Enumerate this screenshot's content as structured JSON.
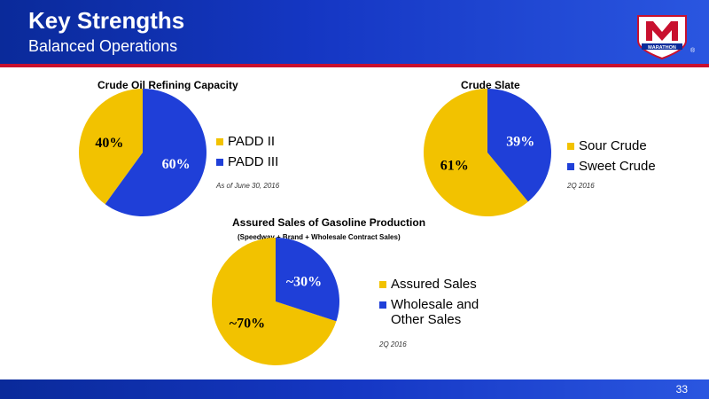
{
  "header": {
    "title": "Key Strengths",
    "subtitle": "Balanced Operations",
    "logo_text": "MARATHON"
  },
  "footer": {
    "page_number": "33"
  },
  "colors": {
    "header_blue": "#1537c4",
    "accent_red": "#c8102e",
    "gold": "#f2c200",
    "blue": "#1f3fd8"
  },
  "chart_data": [
    {
      "type": "pie",
      "title": "Crude Oil Refining Capacity",
      "categories": [
        "PADD II",
        "PADD III"
      ],
      "values": [
        40,
        60
      ],
      "labels": [
        "40%",
        "60%"
      ],
      "colors": [
        "#f2c200",
        "#1f3fd8"
      ],
      "note": "As of June 30, 2016",
      "legend": "right"
    },
    {
      "type": "pie",
      "title": "Crude Slate",
      "categories": [
        "Sour Crude",
        "Sweet Crude"
      ],
      "values": [
        61,
        39
      ],
      "labels": [
        "61%",
        "39%"
      ],
      "colors": [
        "#f2c200",
        "#1f3fd8"
      ],
      "note": "2Q 2016",
      "legend": "right"
    },
    {
      "type": "pie",
      "title": "Assured Sales of Gasoline Production",
      "subtitle": "(Speedway + Brand + Wholesale Contract Sales)",
      "categories": [
        "Assured Sales",
        "Wholesale and Other Sales"
      ],
      "values": [
        70,
        30
      ],
      "labels": [
        "~70%",
        "~30%"
      ],
      "colors": [
        "#f2c200",
        "#1f3fd8"
      ],
      "note": "2Q 2016",
      "legend": "right"
    }
  ]
}
